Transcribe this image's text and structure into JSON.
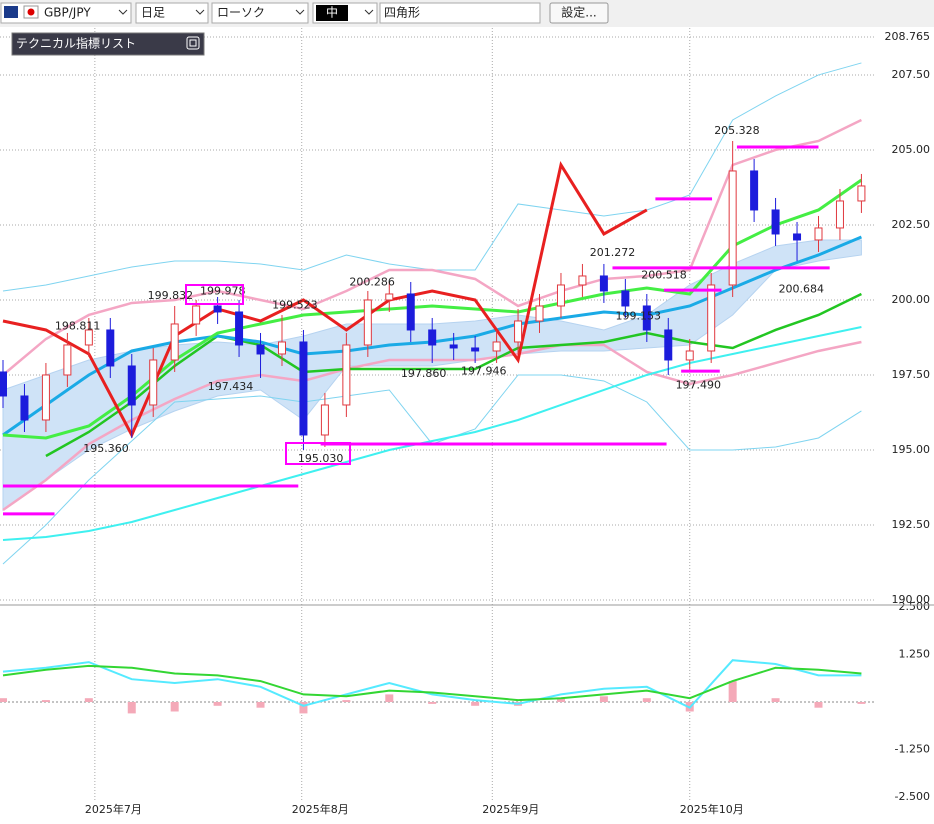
{
  "toolbar": {
    "symbol": "GBP/JPY",
    "period": "日足",
    "style": "ローソク",
    "size": "中",
    "shape": "四角形",
    "settings": "設定..."
  },
  "panel": {
    "title": "テクニカル指標リスト"
  },
  "chart_data": [
    {
      "type": "candlestick",
      "xlim": [
        0,
        101
      ],
      "ylim": [
        190,
        208.765
      ],
      "yticks": [
        {
          "value": 190,
          "label": "190.00"
        },
        {
          "value": 192.5,
          "label": "192.50"
        },
        {
          "value": 195,
          "label": "195.00"
        },
        {
          "value": 197.5,
          "label": "197.50"
        },
        {
          "value": 200,
          "label": "200.00"
        },
        {
          "value": 202.5,
          "label": "202.50"
        },
        {
          "value": 205,
          "label": "205.00"
        },
        {
          "value": 207.5,
          "label": "207.50"
        },
        208.765
      ],
      "xticks": [
        {
          "value": 10.7,
          "label": "2025年7月"
        },
        {
          "value": 34.8,
          "label": "2025年8月"
        },
        {
          "value": 57,
          "label": "2025年9月"
        },
        {
          "value": 80,
          "label": "2025年10月"
        }
      ],
      "grid": true,
      "candles": {
        "up_color": "#e0383e",
        "down_color": "#1c1cdc",
        "x": [
          0,
          2.5,
          5,
          7.5,
          10,
          12.5,
          15,
          17.5,
          20,
          22.5,
          25,
          27.5,
          30,
          32.5,
          35,
          37.5,
          40,
          42.5,
          45,
          47.5,
          50,
          52.5,
          55,
          57.5,
          60,
          62.5,
          65,
          67.5,
          70,
          72.5,
          75,
          77.5,
          80,
          82.5,
          85,
          87.5,
          90,
          92.5,
          95,
          97.5,
          100
        ],
        "open": [
          197.6,
          196.8,
          196.0,
          197.5,
          198.5,
          199.0,
          197.8,
          196.5,
          198.0,
          199.2,
          199.8,
          199.6,
          198.5,
          198.2,
          198.6,
          195.5,
          196.5,
          198.5,
          200.0,
          200.2,
          199.0,
          198.5,
          198.4,
          198.3,
          198.6,
          199.3,
          199.8,
          200.5,
          200.8,
          200.3,
          199.8,
          199.0,
          198.0,
          198.3,
          200.5,
          204.3,
          203.0,
          202.2,
          202.0,
          202.4,
          203.3
        ],
        "high": [
          198.0,
          197.2,
          197.9,
          198.9,
          199.4,
          199.4,
          198.2,
          198.4,
          199.8,
          200.0,
          200.1,
          200.0,
          198.9,
          199.5,
          199.0,
          196.9,
          198.9,
          200.3,
          200.6,
          200.6,
          199.4,
          198.9,
          198.8,
          199.0,
          199.7,
          200.2,
          200.9,
          201.2,
          201.2,
          200.7,
          200.2,
          199.4,
          198.7,
          200.9,
          205.3,
          204.7,
          203.4,
          202.6,
          202.8,
          203.7,
          204.2
        ],
        "low": [
          196.4,
          195.6,
          195.6,
          197.1,
          198.1,
          197.4,
          195.4,
          196.1,
          197.6,
          198.8,
          199.2,
          198.1,
          197.4,
          197.8,
          195.0,
          195.1,
          196.1,
          198.1,
          199.6,
          198.6,
          197.9,
          198.0,
          197.9,
          197.9,
          198.2,
          198.9,
          199.4,
          200.1,
          199.9,
          199.4,
          198.6,
          197.5,
          197.6,
          197.9,
          200.1,
          202.6,
          201.8,
          201.3,
          201.6,
          202.0,
          202.9
        ],
        "close": [
          196.8,
          196.0,
          197.5,
          198.5,
          199.0,
          197.8,
          196.5,
          198.0,
          199.2,
          199.8,
          199.6,
          198.5,
          198.2,
          198.6,
          195.5,
          196.5,
          198.5,
          200.0,
          200.2,
          199.0,
          198.5,
          198.4,
          198.3,
          198.6,
          199.3,
          199.8,
          200.5,
          200.8,
          200.3,
          199.8,
          199.0,
          198.0,
          198.3,
          200.5,
          204.3,
          203.0,
          202.2,
          202.0,
          202.4,
          203.3,
          203.8
        ]
      },
      "x": [
        0,
        5,
        10,
        15,
        20,
        25,
        30,
        35,
        40,
        45,
        50,
        55,
        60,
        65,
        70,
        75,
        80,
        85,
        90,
        95,
        100
      ],
      "cloud": {
        "color": "#cfe3f7",
        "upper": [
          197,
          197.5,
          198,
          198.3,
          198.5,
          198.6,
          198.5,
          198.8,
          199.2,
          199.2,
          199.2,
          199.3,
          199.5,
          199.3,
          199,
          199.5,
          200.5,
          201.2,
          201.8,
          202,
          202
        ],
        "lower": [
          193,
          194,
          195,
          195.7,
          196.3,
          196.8,
          197,
          196,
          197.8,
          197.8,
          197.8,
          198,
          198.2,
          198.3,
          198.3,
          198.4,
          198.5,
          199.5,
          201,
          201.3,
          201.5
        ]
      },
      "series": [
        {
          "color": "#7fd4f0",
          "width": 1,
          "values": [
            200.3,
            200.5,
            200.8,
            201.1,
            201.3,
            201.3,
            201.2,
            201.0,
            201.5,
            201.2,
            201.0,
            201.0,
            203.2,
            203.0,
            202.8,
            203.0,
            203.5,
            206.0,
            206.8,
            207.5,
            207.9
          ]
        },
        {
          "color": "#7fd4f0",
          "width": 1,
          "values": [
            191.2,
            192.5,
            194,
            195.3,
            196.6,
            196.7,
            196.8,
            196.6,
            196.8,
            197.0,
            195.2,
            195.7,
            197.5,
            197.5,
            197.3,
            196.6,
            195.0,
            195.0,
            195.1,
            195.4,
            196.3
          ]
        },
        {
          "color": "#f4a6c4",
          "width": 2.5,
          "values": [
            197.5,
            198.7,
            199.5,
            199.9,
            200.0,
            200.3,
            200.0,
            199.7,
            200.3,
            201.0,
            201.0,
            200.7,
            199.8,
            200.3,
            200.7,
            200.8,
            201.0,
            204.5,
            205.0,
            205.3,
            206.0
          ]
        },
        {
          "color": "#f4a6c4",
          "width": 2.5,
          "values": [
            193.0,
            194.0,
            195.2,
            196.0,
            196.7,
            197.3,
            197.5,
            197.3,
            197.7,
            198.0,
            198.0,
            198.0,
            198.2,
            198.5,
            198.5,
            197.6,
            197.2,
            197.5,
            197.9,
            198.3,
            198.6
          ]
        },
        {
          "color": "#3ff0f0",
          "width": 2,
          "values": [
            192.0,
            192.1,
            192.3,
            192.6,
            193.0,
            193.4,
            193.8,
            194.2,
            194.6,
            195.0,
            195.3,
            195.6,
            196.0,
            196.5,
            197.0,
            197.5,
            197.9,
            198.2,
            198.5,
            198.8,
            199.1
          ]
        },
        {
          "color": "#22c622",
          "width": 2.5,
          "values": [
            null,
            194.8,
            195.6,
            196.6,
            197.8,
            198.8,
            198.5,
            197.6,
            197.7,
            197.7,
            197.7,
            197.7,
            198.4,
            198.5,
            198.6,
            198.9,
            198.6,
            198.4,
            199.0,
            199.5,
            200.2
          ]
        },
        {
          "color": "#1aaae6",
          "width": 3,
          "values": [
            195.5,
            196.5,
            197.5,
            198.3,
            198.6,
            198.8,
            198.6,
            198.2,
            198.3,
            198.5,
            198.6,
            198.8,
            199.2,
            199.4,
            199.6,
            199.5,
            199.8,
            200.4,
            201.0,
            201.5,
            202.1
          ]
        },
        {
          "color": "#44ee44",
          "width": 3,
          "values": [
            195.5,
            195.4,
            195.8,
            196.8,
            198.0,
            198.9,
            199.2,
            199.5,
            199.6,
            199.7,
            199.8,
            199.7,
            199.6,
            199.9,
            200.2,
            200.4,
            200.2,
            201.8,
            202.5,
            203.0,
            204.0
          ]
        },
        {
          "color": "#e82020",
          "width": 3,
          "values": [
            199.3,
            199.0,
            198.2,
            195.5,
            198.8,
            199.7,
            199.3,
            200,
            199,
            200,
            200.3,
            200,
            198,
            204.5,
            202.2,
            203,
            null,
            null,
            null,
            null,
            null
          ]
        }
      ],
      "hlines": {
        "color": "#ff00ff",
        "items": [
          {
            "value": 193.8,
            "x": [
              0,
              34.4
            ]
          },
          {
            "value": 192.87,
            "x": [
              0,
              6
            ]
          },
          {
            "value": 195.2,
            "x": [
              37,
              77.3
            ]
          },
          {
            "value": 201.07,
            "x": [
              71,
              96.3
            ]
          },
          {
            "value": 200.33,
            "x": [
              77,
              83.7
            ]
          },
          {
            "value": 203.37,
            "x": [
              76,
              82.6
            ]
          },
          {
            "value": 205.1,
            "x": [
              85.5,
              95
            ]
          },
          {
            "value": 197.63,
            "x": [
              79,
              83.5
            ]
          }
        ]
      },
      "annotations": [
        {
          "label": "198.811",
          "value": 198.811,
          "x": 8.7
        },
        {
          "label": "199.832",
          "value": 199.832,
          "x": 19.5
        },
        {
          "label": "195.360",
          "value": 195.36,
          "x": 12
        },
        {
          "label": "199.978",
          "value": 199.978,
          "x": 25.6
        },
        {
          "label": "197.434",
          "value": 197.434,
          "x": 26.5
        },
        {
          "label": "199.523",
          "value": 199.523,
          "x": 34
        },
        {
          "label": "195.030",
          "value": 195.03,
          "x": 37
        },
        {
          "label": "200.286",
          "value": 200.286,
          "x": 43
        },
        {
          "label": "197.860",
          "value": 197.86,
          "x": 49
        },
        {
          "label": "197.946",
          "value": 197.946,
          "x": 56
        },
        {
          "label": "201.272",
          "value": 201.272,
          "x": 71
        },
        {
          "label": "200.518",
          "value": 200.518,
          "x": 77
        },
        {
          "label": "199.153",
          "value": 199.153,
          "x": 74
        },
        {
          "label": "205.328",
          "value": 205.328,
          "x": 85.5
        },
        {
          "label": "197.490",
          "value": 197.49,
          "x": 81
        },
        {
          "label": "200.684",
          "value": 200.684,
          "x": 93
        }
      ]
    },
    {
      "type": "macd",
      "xlim": [
        0,
        101
      ],
      "ylim": [
        -2.5,
        2.5
      ],
      "yticks": [
        {
          "value": 2.5,
          "label": "2.500"
        },
        {
          "value": 1.25,
          "label": "1.250"
        },
        {
          "value": -1.25,
          "label": "-1.250"
        },
        {
          "value": -2.5,
          "label": "-2.500"
        }
      ],
      "x": [
        0,
        5,
        10,
        15,
        20,
        25,
        30,
        35,
        40,
        45,
        50,
        55,
        60,
        65,
        70,
        75,
        80,
        85,
        90,
        95,
        100
      ],
      "histogram": {
        "color": "#f4a9b8",
        "values": [
          0.1,
          0.05,
          0.1,
          -0.3,
          -0.25,
          -0.1,
          -0.15,
          -0.3,
          0.05,
          0.2,
          -0.05,
          -0.1,
          -0.1,
          0.1,
          0.15,
          0.1,
          -0.25,
          0.55,
          0.1,
          -0.15,
          -0.05
        ]
      },
      "series": [
        {
          "color": "#55eaff",
          "width": 2,
          "values": [
            0.8,
            0.9,
            1.05,
            0.6,
            0.5,
            0.6,
            0.4,
            -0.1,
            0.2,
            0.5,
            0.2,
            0.05,
            -0.05,
            0.2,
            0.35,
            0.4,
            -0.15,
            1.1,
            1.0,
            0.7,
            0.7
          ]
        },
        {
          "color": "#33d633",
          "width": 2,
          "values": [
            0.7,
            0.85,
            0.95,
            0.9,
            0.75,
            0.7,
            0.55,
            0.2,
            0.15,
            0.3,
            0.25,
            0.15,
            0.05,
            0.1,
            0.2,
            0.3,
            0.1,
            0.55,
            0.9,
            0.85,
            0.75
          ]
        }
      ]
    }
  ]
}
